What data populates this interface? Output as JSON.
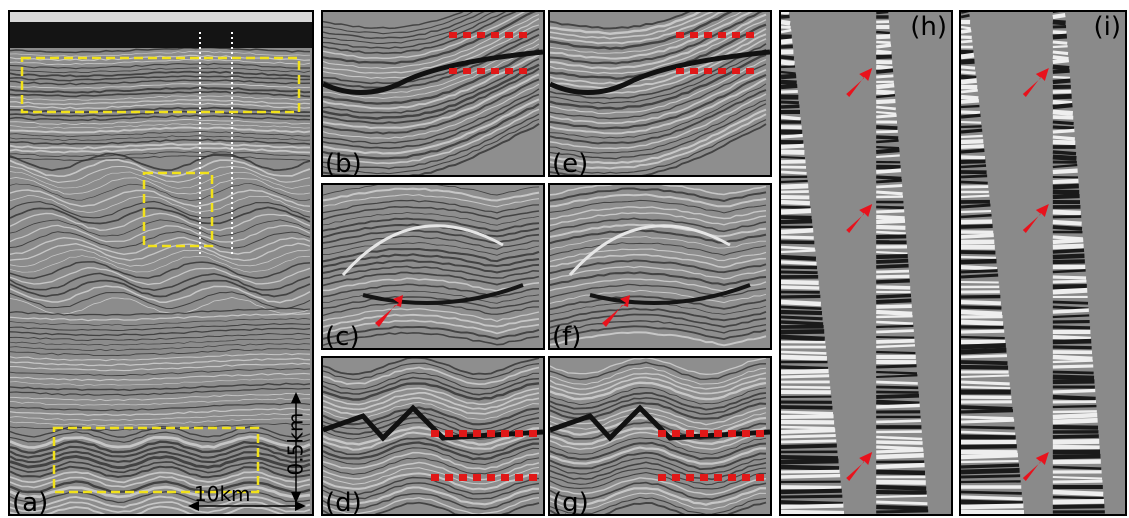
{
  "figure": {
    "panels": [
      {
        "id": "a",
        "label": "(a)"
      },
      {
        "id": "b",
        "label": "(b)"
      },
      {
        "id": "c",
        "label": "(c)"
      },
      {
        "id": "d",
        "label": "(d)"
      },
      {
        "id": "e",
        "label": "(e)"
      },
      {
        "id": "f",
        "label": "(f)"
      },
      {
        "id": "g",
        "label": "(g)"
      },
      {
        "id": "h",
        "label": "(h)"
      },
      {
        "id": "i",
        "label": "(i)"
      }
    ],
    "scale": {
      "horizontal": "10km",
      "vertical": "0.5km"
    }
  },
  "colors": {
    "highlight_box": "#f2e21a",
    "arrow": "#e8121c",
    "marker_dots": "#e01818",
    "well_trace_line": "#ffffff",
    "seismic_background": "#8a8a8a"
  }
}
